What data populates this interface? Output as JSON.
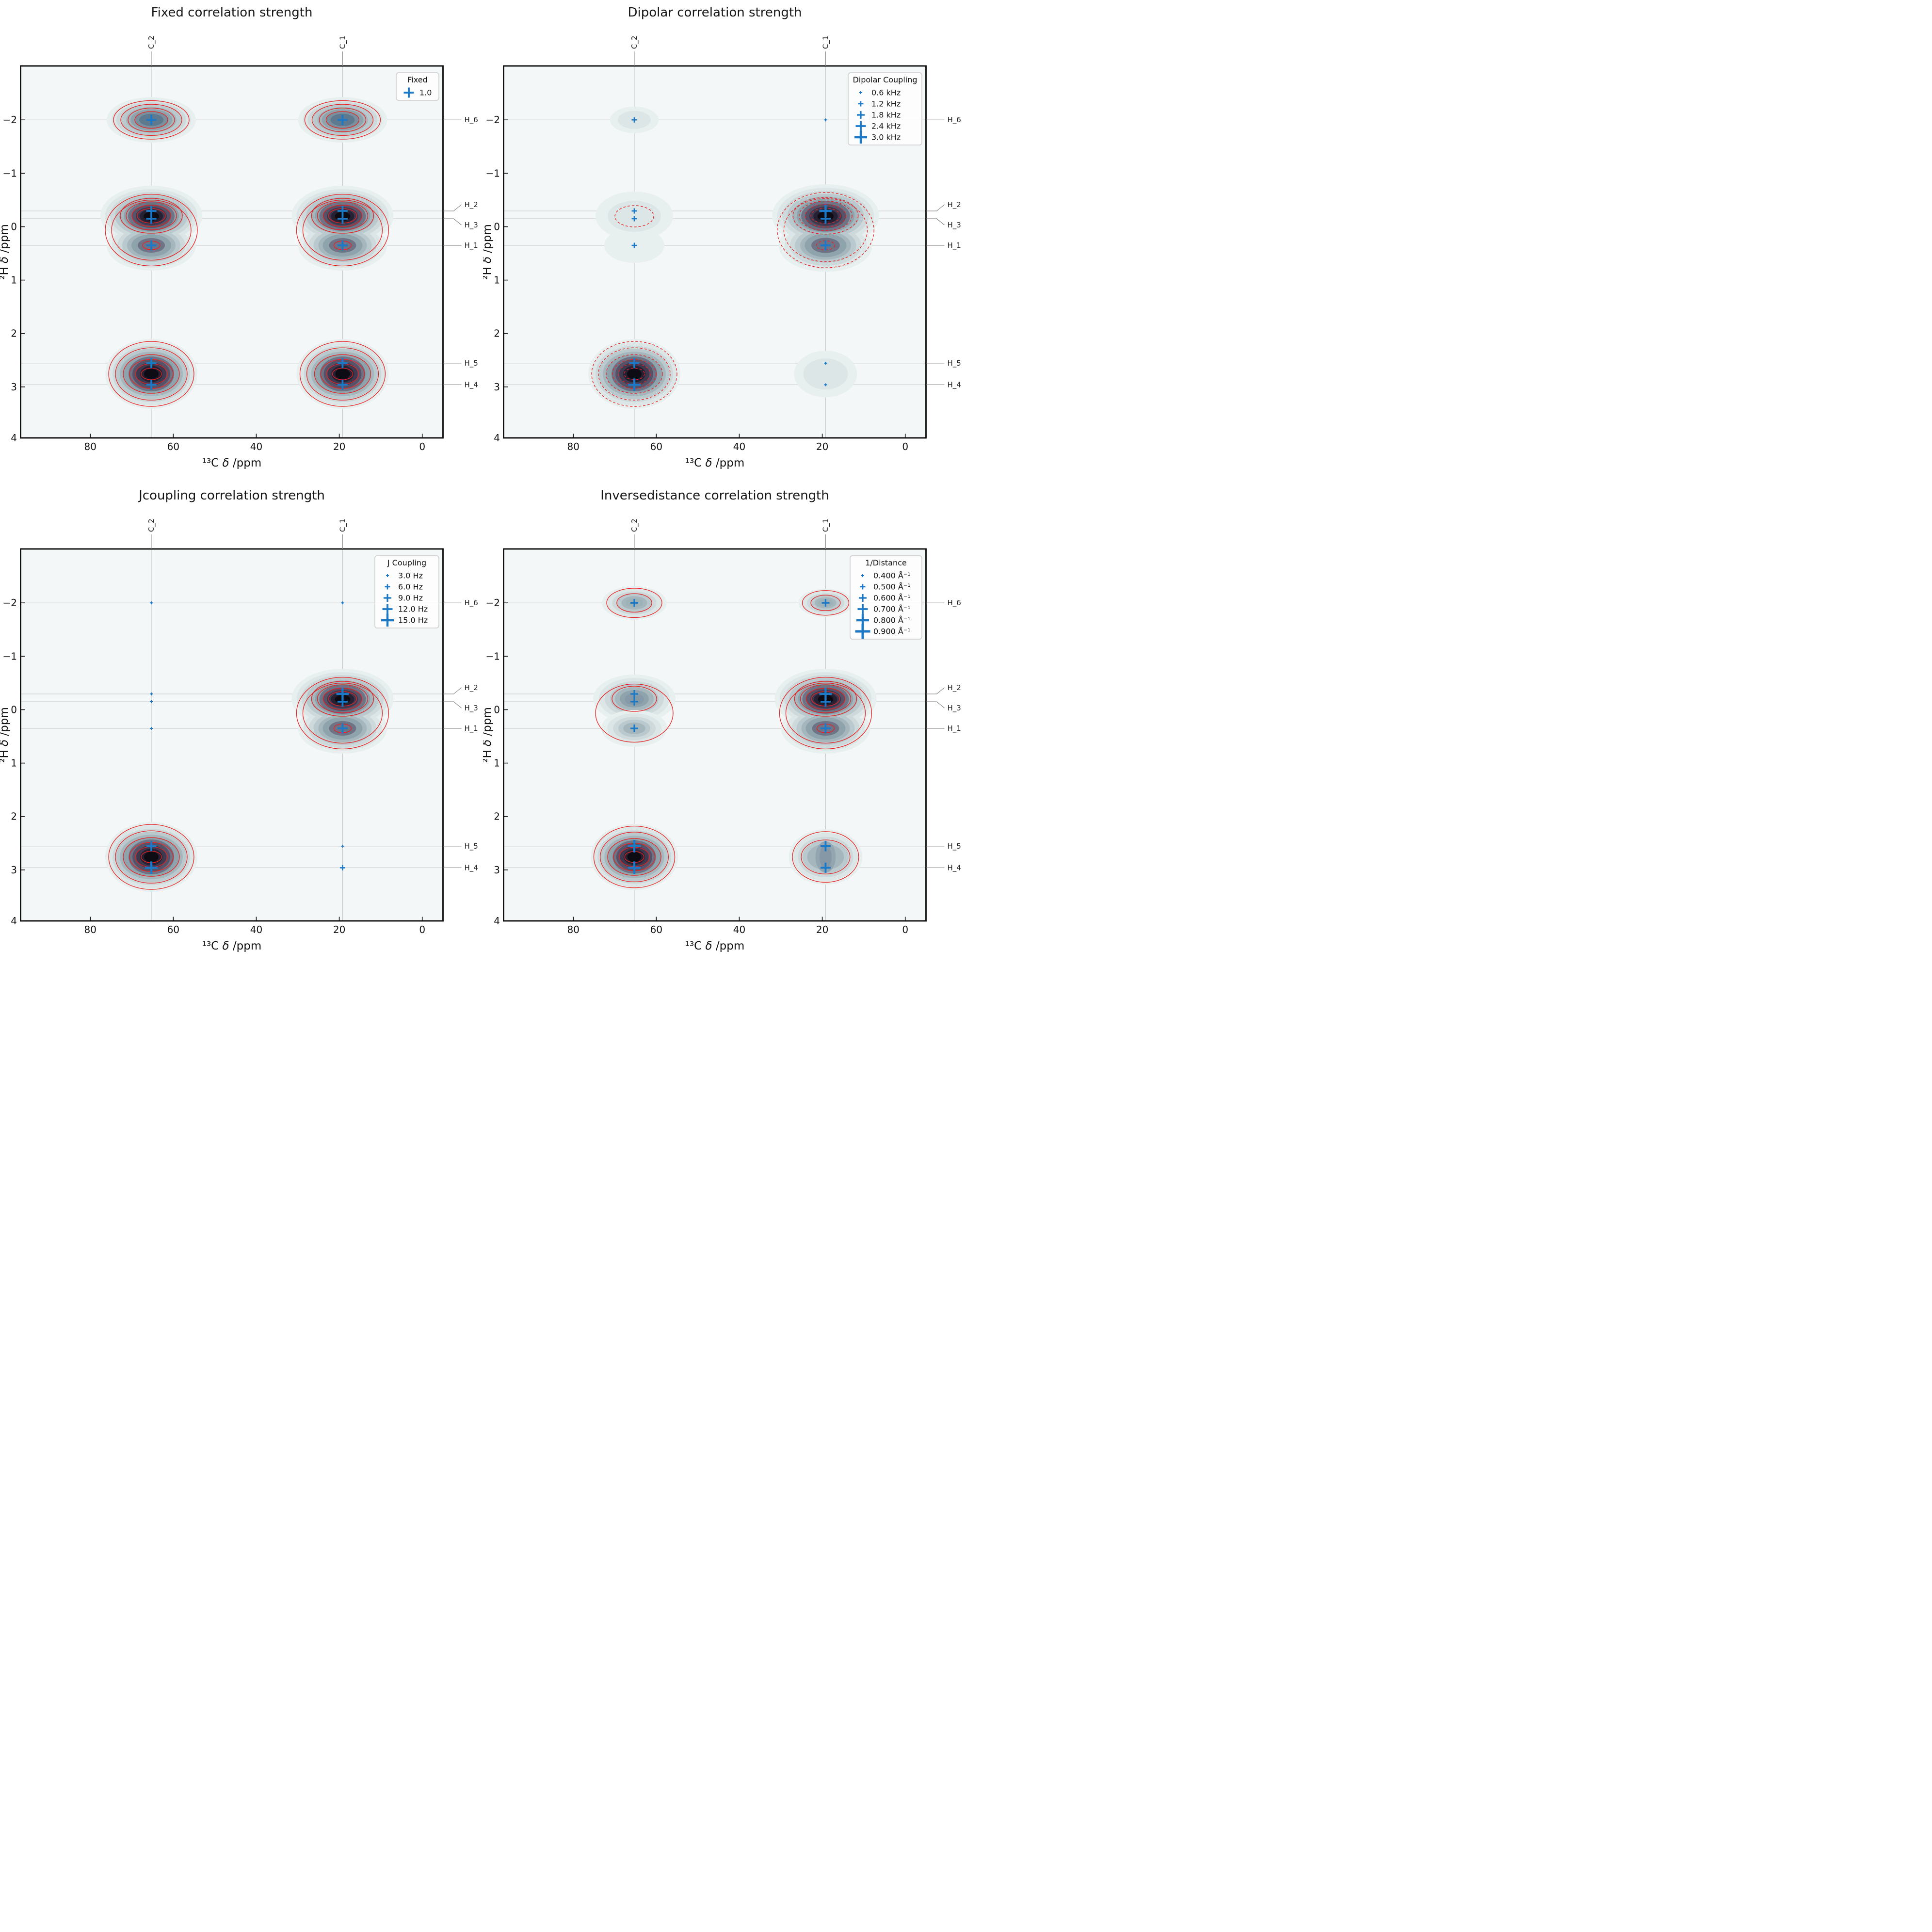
{
  "chart_data": {
    "type": "contour-scatter",
    "description": "2x2 grid of 2D NMR HETCOR-style correlation contour plots with blue plus markers sized by correlation strength",
    "colors": {
      "marker": "#1b79c8",
      "contour_line": "#e62020",
      "plot_background": "#f4f7f8",
      "page_background": "#ffffff",
      "gridline": "#c3c6c8",
      "spine": "#0a0a0a"
    },
    "axes": {
      "xlabel": "¹³C δ /ppm",
      "ylabel": "²H δ /ppm",
      "xticks": [
        80,
        60,
        40,
        20,
        0
      ],
      "yticks": [
        -2,
        -1,
        0,
        1,
        2,
        3,
        4
      ],
      "xlim": [
        96.8,
        -5.0
      ],
      "ylim": [
        -3.01,
        3.955
      ],
      "x_inverted": true,
      "y_inverted": true
    },
    "atoms": {
      "carbons": [
        {
          "name": "C_2",
          "ppm": 65.3
        },
        {
          "name": "C_1",
          "ppm": 19.2
        }
      ],
      "hydrogens": [
        {
          "name": "H_6",
          "ppm": -2.0
        },
        {
          "name": "H_2",
          "ppm": -0.295
        },
        {
          "name": "H_3",
          "ppm": -0.15
        },
        {
          "name": "H_1",
          "ppm": 0.35
        },
        {
          "name": "H_5",
          "ppm": 2.555
        },
        {
          "name": "H_4",
          "ppm": 2.96
        }
      ]
    },
    "panels": [
      {
        "key": "fixed",
        "title": "Fixed correlation strength",
        "contour_line_style": "solid",
        "legend": {
          "title": "Fixed",
          "entries": [
            {
              "label": "1.0",
              "level": 4
            }
          ]
        },
        "peaks": [
          {
            "carbon": "C_2",
            "group": "h6",
            "intensity": "medium-dark",
            "scale": 1.0,
            "markers": [
              {
                "h": "H_6",
                "level": 4
              }
            ]
          },
          {
            "carbon": "C_1",
            "group": "h6",
            "intensity": "medium-dark",
            "scale": 1.0,
            "markers": [
              {
                "h": "H_6",
                "level": 4
              }
            ]
          },
          {
            "carbon": "C_2",
            "group": "mid",
            "intensity": "dark",
            "scale": 1.0,
            "markers": [
              {
                "h": "H_2",
                "level": 4
              },
              {
                "h": "H_3",
                "level": 4
              },
              {
                "h": "H_1",
                "level": 4
              }
            ]
          },
          {
            "carbon": "C_1",
            "group": "mid",
            "intensity": "dark",
            "scale": 1.0,
            "markers": [
              {
                "h": "H_2",
                "level": 4
              },
              {
                "h": "H_3",
                "level": 4
              },
              {
                "h": "H_1",
                "level": 4
              }
            ]
          },
          {
            "carbon": "C_2",
            "group": "low",
            "intensity": "dark",
            "scale": 1.0,
            "markers": [
              {
                "h": "H_5",
                "level": 4
              },
              {
                "h": "H_4",
                "level": 4
              }
            ]
          },
          {
            "carbon": "C_1",
            "group": "low",
            "intensity": "dark",
            "scale": 1.0,
            "markers": [
              {
                "h": "H_5",
                "level": 4
              },
              {
                "h": "H_4",
                "level": 4
              }
            ]
          }
        ]
      },
      {
        "key": "dipolar",
        "title": "Dipolar correlation strength",
        "contour_line_style": "dashed",
        "legend": {
          "title": "Dipolar Coupling",
          "entries": [
            {
              "label": "0.6 kHz",
              "level": 1
            },
            {
              "label": "1.2 kHz",
              "level": 2
            },
            {
              "label": "1.8 kHz",
              "level": 3
            },
            {
              "label": "2.4 kHz",
              "level": 4
            },
            {
              "label": "3.0 kHz",
              "level": 5
            }
          ]
        },
        "peaks": [
          {
            "carbon": "C_2",
            "group": "h6",
            "intensity": "light",
            "scale": 1.0,
            "markers": [
              {
                "h": "H_6",
                "level": 2
              }
            ]
          },
          {
            "carbon": "C_1",
            "group": "h6",
            "intensity": "none",
            "scale": 1.0,
            "markers": [
              {
                "h": "H_6",
                "level": 1
              }
            ]
          },
          {
            "carbon": "C_2",
            "group": "mid",
            "intensity": "light",
            "scale": 1.0,
            "markers": [
              {
                "h": "H_2",
                "level": 2
              },
              {
                "h": "H_3",
                "level": 2
              },
              {
                "h": "H_1",
                "level": 2
              }
            ]
          },
          {
            "carbon": "C_1",
            "group": "mid",
            "intensity": "dark",
            "scale": 1.05,
            "markers": [
              {
                "h": "H_2",
                "level": 5
              },
              {
                "h": "H_3",
                "level": 4
              },
              {
                "h": "H_1",
                "level": 4
              }
            ]
          },
          {
            "carbon": "C_2",
            "group": "low",
            "intensity": "dark",
            "scale": 1.0,
            "markers": [
              {
                "h": "H_5",
                "level": 4
              },
              {
                "h": "H_4",
                "level": 5
              }
            ]
          },
          {
            "carbon": "C_1",
            "group": "low",
            "intensity": "light",
            "scale": 1.0,
            "markers": [
              {
                "h": "H_5",
                "level": 1
              },
              {
                "h": "H_4",
                "level": 1
              }
            ]
          }
        ]
      },
      {
        "key": "jcoupling",
        "title": "Jcoupling correlation strength",
        "contour_line_style": "solid",
        "legend": {
          "title": "J Coupling",
          "entries": [
            {
              "label": "3.0 Hz",
              "level": 1
            },
            {
              "label": "6.0 Hz",
              "level": 2
            },
            {
              "label": "9.0 Hz",
              "level": 3
            },
            {
              "label": "12.0 Hz",
              "level": 4
            },
            {
              "label": "15.0 Hz",
              "level": 5
            }
          ]
        },
        "peaks": [
          {
            "carbon": "C_2",
            "group": "h6",
            "intensity": "none",
            "scale": 1.0,
            "markers": [
              {
                "h": "H_6",
                "level": 1
              }
            ]
          },
          {
            "carbon": "C_1",
            "group": "h6",
            "intensity": "none",
            "scale": 1.0,
            "markers": [
              {
                "h": "H_6",
                "level": 1
              }
            ]
          },
          {
            "carbon": "C_2",
            "group": "mid",
            "intensity": "none",
            "scale": 1.0,
            "markers": [
              {
                "h": "H_2",
                "level": 1
              },
              {
                "h": "H_3",
                "level": 1
              },
              {
                "h": "H_1",
                "level": 1
              }
            ]
          },
          {
            "carbon": "C_1",
            "group": "mid",
            "intensity": "dark",
            "scale": 1.0,
            "markers": [
              {
                "h": "H_2",
                "level": 5
              },
              {
                "h": "H_3",
                "level": 4
              },
              {
                "h": "H_1",
                "level": 4
              }
            ]
          },
          {
            "carbon": "C_2",
            "group": "low",
            "intensity": "dark",
            "scale": 1.0,
            "markers": [
              {
                "h": "H_5",
                "level": 4
              },
              {
                "h": "H_4",
                "level": 5
              }
            ]
          },
          {
            "carbon": "C_1",
            "group": "low",
            "intensity": "none",
            "scale": 1.0,
            "markers": [
              {
                "h": "H_5",
                "level": 1
              },
              {
                "h": "H_4",
                "level": 2
              }
            ]
          }
        ]
      },
      {
        "key": "inversedistance",
        "title": "Inversedistance correlation strength",
        "contour_line_style": "solid",
        "legend": {
          "title": "1/Distance",
          "entries": [
            {
              "label": "0.400 Å⁻¹",
              "level": 1
            },
            {
              "label": "0.500 Å⁻¹",
              "level": 2
            },
            {
              "label": "0.600 Å⁻¹",
              "level": 3
            },
            {
              "label": "0.700 Å⁻¹",
              "level": 4
            },
            {
              "label": "0.800 Å⁻¹",
              "level": 5
            },
            {
              "label": "0.900 Å⁻¹",
              "level": 6
            }
          ]
        },
        "peaks": [
          {
            "carbon": "C_2",
            "group": "h6",
            "intensity": "medium",
            "scale": 0.95,
            "markers": [
              {
                "h": "H_6",
                "level": 3
              }
            ]
          },
          {
            "carbon": "C_1",
            "group": "h6",
            "intensity": "medium",
            "scale": 0.8,
            "markers": [
              {
                "h": "H_6",
                "level": 3
              }
            ]
          },
          {
            "carbon": "C_2",
            "group": "mid",
            "intensity": "medium",
            "scale": 1.0,
            "markers": [
              {
                "h": "H_2",
                "level": 3
              },
              {
                "h": "H_3",
                "level": 3
              },
              {
                "h": "H_1",
                "level": 3
              }
            ]
          },
          {
            "carbon": "C_1",
            "group": "mid",
            "intensity": "dark",
            "scale": 1.0,
            "markers": [
              {
                "h": "H_2",
                "level": 5
              },
              {
                "h": "H_3",
                "level": 4
              },
              {
                "h": "H_1",
                "level": 4
              }
            ]
          },
          {
            "carbon": "C_2",
            "group": "low",
            "intensity": "dark",
            "scale": 0.95,
            "markers": [
              {
                "h": "H_5",
                "level": 5
              },
              {
                "h": "H_4",
                "level": 5
              }
            ]
          },
          {
            "carbon": "C_1",
            "group": "low",
            "intensity": "medium",
            "scale": 0.95,
            "markers": [
              {
                "h": "H_5",
                "level": 4
              },
              {
                "h": "H_4",
                "level": 4
              }
            ]
          }
        ]
      }
    ]
  }
}
